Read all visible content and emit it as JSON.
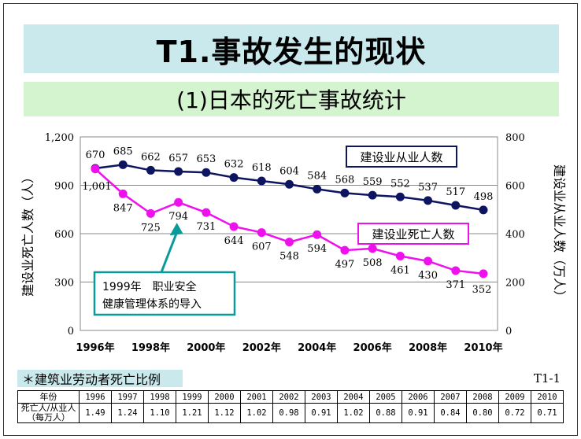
{
  "title": "T1.事故发生的现状",
  "subtitle": "(1)日本的死亡事故统计",
  "chart_data": {
    "type": "line",
    "x": [
      "1996",
      "1997",
      "1998",
      "1999",
      "2000",
      "2001",
      "2002",
      "2003",
      "2004",
      "2005",
      "2006",
      "2007",
      "2008",
      "2009",
      "2010"
    ],
    "x_tick_labels": [
      "1996年",
      "1998年",
      "2000年",
      "2002年",
      "2004年",
      "2006年",
      "2008年",
      "2010年"
    ],
    "ylabel_left": "建设业死亡人数（人）",
    "ylabel_right": "建设业从业人数（万人）",
    "ylim_left": [
      0,
      1200
    ],
    "ylim_right": [
      0,
      800
    ],
    "yticks_left": [
      "0",
      "300",
      "600",
      "900",
      "1,200"
    ],
    "yticks_right": [
      "0",
      "200",
      "400",
      "600",
      "800"
    ],
    "grid": true,
    "series": [
      {
        "name": "建设业从业人数",
        "axis": "right",
        "color": "#0d1560",
        "values": [
          670,
          685,
          662,
          657,
          653,
          632,
          618,
          604,
          584,
          568,
          559,
          552,
          537,
          517,
          498
        ],
        "labels": [
          "670",
          "685",
          "662",
          "657",
          "653",
          "632",
          "618",
          "604",
          "584",
          "568",
          "559",
          "552",
          "537",
          "517",
          "498"
        ]
      },
      {
        "name": "建设业死亡人数",
        "axis": "left",
        "color": "#ee11ee",
        "values": [
          1001,
          847,
          725,
          794,
          731,
          644,
          607,
          548,
          594,
          497,
          508,
          461,
          430,
          371,
          352
        ],
        "labels": [
          "1,001",
          "847",
          "725",
          "794",
          "731",
          "644",
          "607",
          "548",
          "594",
          "497",
          "508",
          "461",
          "430",
          "371",
          "352"
        ]
      }
    ],
    "annotation": {
      "year": "1999",
      "line1": "1999年　职业安全",
      "line2": "健康管理体系的导入"
    }
  },
  "footnote": {
    "label": "＊建筑业劳动者死亡比例",
    "code": "T1-1",
    "row1_header": "年份",
    "row2_header_line1": "死亡人/从业人",
    "row2_header_line2": "（每万人）",
    "years": [
      "1996",
      "1997",
      "1998",
      "1999",
      "2000",
      "2001",
      "2002",
      "2003",
      "2004",
      "2005",
      "2006",
      "2007",
      "2008",
      "2009",
      "2010"
    ],
    "ratios": [
      "1.49",
      "1.24",
      "1.10",
      "1.21",
      "1.12",
      "1.02",
      "0.98",
      "0.91",
      "1.02",
      "0.88",
      "0.91",
      "0.84",
      "0.80",
      "0.72",
      "0.71"
    ]
  },
  "colors": {
    "title_bg": "#c9e9ec",
    "subtitle_bg": "#d4f3cf",
    "annotation_border": "#0a9a9a",
    "arrow": "#0a9a9a"
  }
}
